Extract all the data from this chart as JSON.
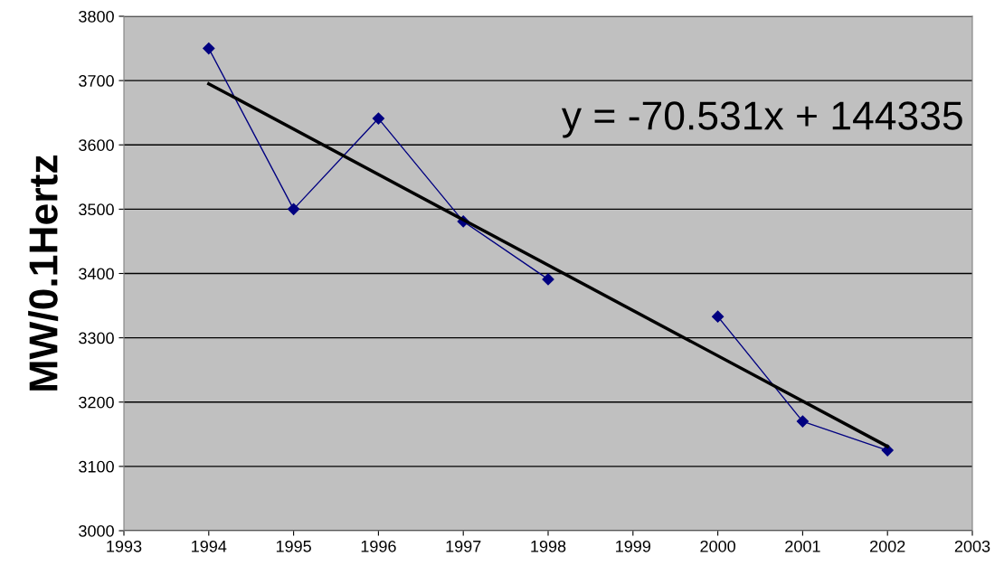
{
  "chart_data": {
    "type": "line",
    "ylabel": "MW/0.1Hertz",
    "annotations": [
      "y = -70.531x + 144335"
    ],
    "x": [
      1994,
      1995,
      1996,
      1997,
      1998,
      1999,
      2000,
      2001,
      2002
    ],
    "series": [
      {
        "color": "#000080",
        "values": [
          3750,
          3500,
          3641,
          3481,
          3391,
          null,
          3333,
          3170,
          3125
        ]
      },
      {
        "type": "line",
        "color": "#000000",
        "x": [
          1994,
          2002
        ],
        "values": [
          3695,
          3131
        ],
        "marker": "none"
      }
    ],
    "xlim": [
      1993,
      2003
    ],
    "xticks": [
      1993,
      1994,
      1995,
      1996,
      1997,
      1998,
      1999,
      2000,
      2001,
      2002,
      2003
    ],
    "ylim": [
      3000,
      3800
    ],
    "yticks": [
      3000,
      3100,
      3200,
      3300,
      3400,
      3500,
      3600,
      3700,
      3800
    ],
    "grid": "y",
    "marker": "diamond",
    "legend": false
  }
}
